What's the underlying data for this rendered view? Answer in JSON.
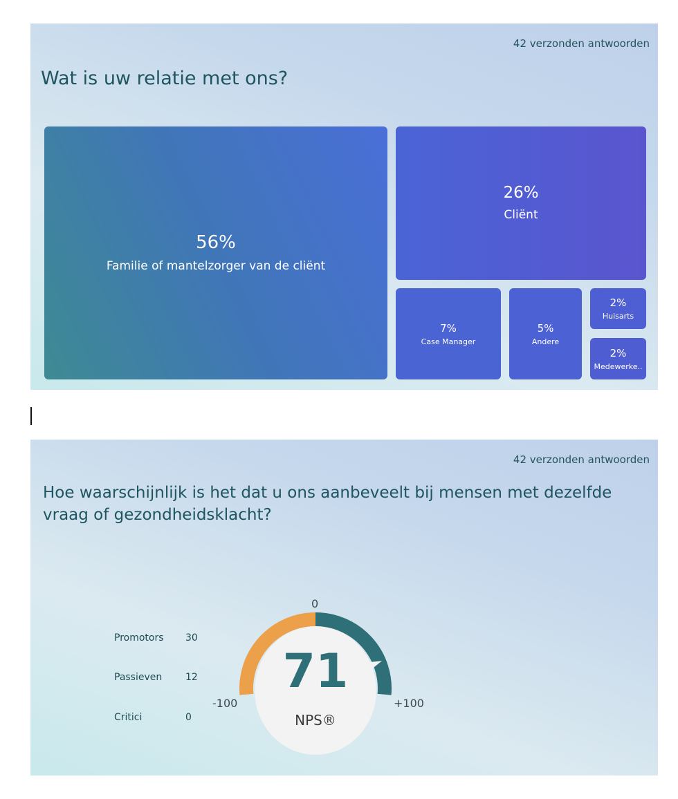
{
  "q1": {
    "responses": "42 verzonden antwoorden",
    "title": "Wat is uw relatie met ons?",
    "tiles": [
      {
        "pct": "56%",
        "label": "Familie of mantelzorger van de cliënt"
      },
      {
        "pct": "26%",
        "label": "Cliënt"
      },
      {
        "pct": "7%",
        "label": "Case Manager"
      },
      {
        "pct": "5%",
        "label": "Andere"
      },
      {
        "pct": "2%",
        "label": "Huisarts"
      },
      {
        "pct": "2%",
        "label": "Medewerke.."
      }
    ],
    "colors": {
      "tile_start": "#3e8a93",
      "tile_mid": "#4a6fd8",
      "tile_end": "#5a55cf"
    }
  },
  "q2": {
    "responses": "42 verzonden antwoorden",
    "title": "Hoe waarschijnlijk is het dat u ons aanbeveelt bij mensen met dezelfde vraag of gezondheidsklacht?",
    "stats": [
      {
        "label": "Promotors",
        "value": "30"
      },
      {
        "label": "Passieven",
        "value": "12"
      },
      {
        "label": "Critici",
        "value": "0"
      }
    ],
    "gauge": {
      "min_label": "-100",
      "zero_label": "0",
      "max_label": "+100",
      "value": 71,
      "value_text": "71",
      "unit_label": "NPS®",
      "colors": {
        "negative": "#eda04a",
        "positive": "#2f6f77"
      }
    }
  }
}
